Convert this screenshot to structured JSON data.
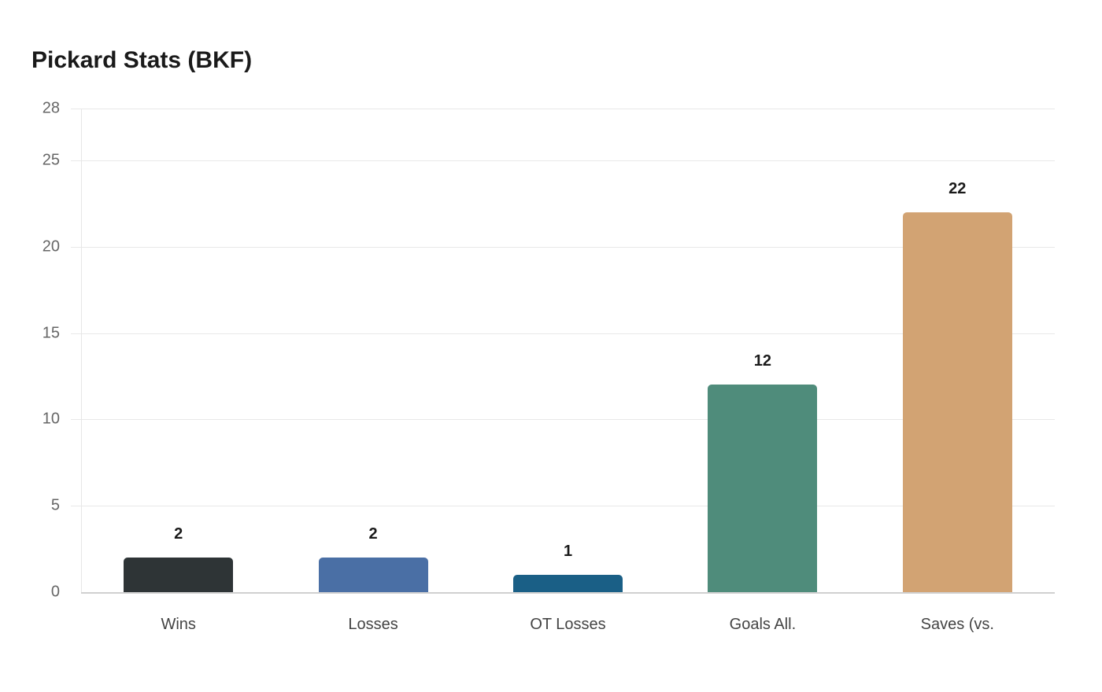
{
  "title": "Pickard Stats (BKF)",
  "y_ticks": [
    "0",
    "5",
    "10",
    "15",
    "20",
    "25",
    "28"
  ],
  "chart_data": {
    "type": "bar",
    "title": "Pickard Stats (BKF)",
    "categories": [
      "Wins",
      "Losses",
      "OT Losses",
      "Goals All.",
      "Saves (vs."
    ],
    "values": [
      2,
      2,
      1,
      12,
      22
    ],
    "colors": [
      "#2e3436",
      "#4a6fa5",
      "#1a5f86",
      "#4f8c7b",
      "#d2a373"
    ],
    "xlabel": "",
    "ylabel": "",
    "ylim": [
      0,
      28
    ],
    "yticks": [
      0,
      5,
      10,
      15,
      20,
      25,
      28
    ],
    "grid": true,
    "legend": "none",
    "data_labels": true
  }
}
